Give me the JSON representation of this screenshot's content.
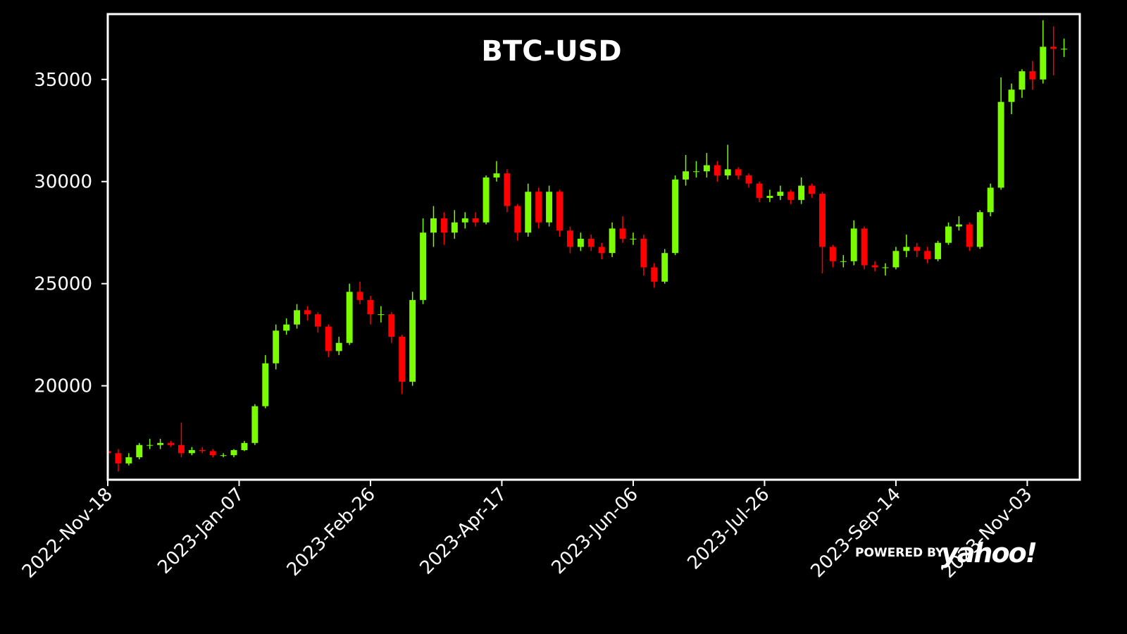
{
  "chart_data": {
    "type": "candlestick",
    "title": "BTC-USD",
    "x": [
      "2022-11-18",
      "2022-11-22",
      "2022-11-26",
      "2022-11-30",
      "2022-12-04",
      "2022-12-08",
      "2022-12-12",
      "2022-12-16",
      "2022-12-20",
      "2022-12-24",
      "2022-12-28",
      "2023-01-01",
      "2023-01-05",
      "2023-01-09",
      "2023-01-13",
      "2023-01-17",
      "2023-01-21",
      "2023-01-25",
      "2023-01-29",
      "2023-02-02",
      "2023-02-06",
      "2023-02-10",
      "2023-02-14",
      "2023-02-18",
      "2023-02-22",
      "2023-02-26",
      "2023-03-02",
      "2023-03-06",
      "2023-03-10",
      "2023-03-14",
      "2023-03-18",
      "2023-03-22",
      "2023-03-26",
      "2023-03-30",
      "2023-04-03",
      "2023-04-07",
      "2023-04-11",
      "2023-04-15",
      "2023-04-19",
      "2023-04-23",
      "2023-04-27",
      "2023-05-01",
      "2023-05-05",
      "2023-05-09",
      "2023-05-13",
      "2023-05-17",
      "2023-05-21",
      "2023-05-25",
      "2023-05-29",
      "2023-06-02",
      "2023-06-06",
      "2023-06-10",
      "2023-06-14",
      "2023-06-18",
      "2023-06-22",
      "2023-06-26",
      "2023-06-30",
      "2023-07-04",
      "2023-07-08",
      "2023-07-12",
      "2023-07-16",
      "2023-07-20",
      "2023-07-24",
      "2023-07-28",
      "2023-08-01",
      "2023-08-05",
      "2023-08-09",
      "2023-08-13",
      "2023-08-17",
      "2023-08-21",
      "2023-08-25",
      "2023-08-29",
      "2023-09-02",
      "2023-09-06",
      "2023-09-10",
      "2023-09-14",
      "2023-09-18",
      "2023-09-22",
      "2023-09-26",
      "2023-09-30",
      "2023-10-04",
      "2023-10-08",
      "2023-10-12",
      "2023-10-16",
      "2023-10-20",
      "2023-10-24",
      "2023-10-28",
      "2023-11-01",
      "2023-11-05",
      "2023-11-09",
      "2023-11-13",
      "2023-11-17"
    ],
    "open": [
      16800,
      16700,
      16200,
      16500,
      17100,
      17100,
      17200,
      17100,
      16700,
      16850,
      16800,
      16600,
      16600,
      16850,
      17200,
      19000,
      21100,
      22700,
      23000,
      23700,
      23500,
      22900,
      21700,
      22100,
      24600,
      24200,
      23500,
      23500,
      22400,
      20200,
      24200,
      27500,
      28200,
      27500,
      28000,
      28200,
      28000,
      30200,
      30400,
      28800,
      27500,
      29500,
      28000,
      29500,
      27600,
      26800,
      27200,
      26800,
      26500,
      27700,
      27200,
      27200,
      25800,
      25100,
      26500,
      30100,
      30500,
      30500,
      30800,
      30300,
      30600,
      30300,
      29900,
      29200,
      29300,
      29500,
      29100,
      29800,
      29400,
      26800,
      26100,
      26100,
      27700,
      25900,
      25800,
      25800,
      26600,
      26800,
      26600,
      26200,
      27000,
      27800,
      27900,
      26800,
      28500,
      29700,
      33900,
      34500,
      35400,
      35000,
      36600,
      36500
    ],
    "high": [
      17100,
      16900,
      16700,
      17200,
      17400,
      17400,
      17300,
      18200,
      17000,
      17000,
      16900,
      16700,
      16900,
      17300,
      19100,
      21500,
      23000,
      23300,
      24000,
      23900,
      23600,
      23000,
      22400,
      25000,
      25100,
      24400,
      23900,
      23600,
      22500,
      24600,
      28200,
      28800,
      28500,
      28600,
      28500,
      28500,
      30300,
      31000,
      30600,
      28900,
      29900,
      29700,
      29800,
      29600,
      27800,
      27500,
      27400,
      27000,
      28000,
      28300,
      27500,
      27400,
      26000,
      26700,
      30300,
      31300,
      31000,
      31400,
      31000,
      31800,
      30700,
      30400,
      30000,
      29600,
      29800,
      29600,
      30200,
      29900,
      29500,
      26900,
      26400,
      28100,
      27800,
      26100,
      26000,
      26800,
      27400,
      27000,
      26800,
      27100,
      28000,
      28300,
      28000,
      28600,
      29900,
      35100,
      34800,
      35500,
      35900,
      37900,
      37600,
      37000
    ],
    "low": [
      16400,
      15800,
      16100,
      16400,
      16900,
      16900,
      17000,
      16500,
      16600,
      16700,
      16500,
      16500,
      16500,
      16800,
      17100,
      18900,
      20800,
      22500,
      22800,
      23200,
      22600,
      21400,
      21500,
      22000,
      24000,
      23000,
      23100,
      22100,
      19600,
      20000,
      24000,
      26800,
      26900,
      27200,
      27700,
      27800,
      27900,
      30000,
      28500,
      27100,
      27300,
      27700,
      27800,
      27300,
      26500,
      26600,
      26600,
      26200,
      26300,
      27000,
      26900,
      25400,
      24800,
      25000,
      26400,
      29800,
      30200,
      30200,
      30000,
      30100,
      30100,
      29700,
      29000,
      29000,
      29100,
      28900,
      28900,
      29200,
      25500,
      25800,
      25800,
      25900,
      25700,
      25600,
      25400,
      25700,
      26300,
      26300,
      26000,
      26100,
      26900,
      27600,
      26600,
      26700,
      28300,
      29600,
      33300,
      34100,
      34500,
      34800,
      35200,
      36100
    ],
    "close": [
      16700,
      16200,
      16500,
      17100,
      17100,
      17200,
      17100,
      16700,
      16850,
      16800,
      16600,
      16600,
      16850,
      17200,
      19000,
      21100,
      22700,
      23000,
      23700,
      23500,
      22900,
      21700,
      22100,
      24600,
      24200,
      23500,
      23500,
      22400,
      20200,
      24200,
      27500,
      28200,
      27500,
      28000,
      28200,
      28000,
      30200,
      30400,
      28800,
      27500,
      29500,
      28000,
      29500,
      27600,
      26800,
      27200,
      26800,
      26500,
      27700,
      27200,
      27200,
      25800,
      25100,
      26500,
      30100,
      30500,
      30500,
      30800,
      30300,
      30600,
      30300,
      29900,
      29200,
      29300,
      29500,
      29100,
      29800,
      29400,
      26800,
      26100,
      26100,
      27700,
      25900,
      25800,
      25800,
      26600,
      26800,
      26600,
      26200,
      27000,
      27800,
      27900,
      26800,
      28500,
      29700,
      33900,
      34500,
      35400,
      35000,
      36600,
      36500,
      36500
    ],
    "up_color": "#7cfc00",
    "down_color": "#ff0000",
    "xlim": [
      "2022-11-18",
      "2023-11-23"
    ],
    "xticks": [
      {
        "value": "2022-11-18",
        "label": "2022-Nov-18"
      },
      {
        "value": "2023-01-07",
        "label": "2023-Jan-07"
      },
      {
        "value": "2023-02-26",
        "label": "2023-Feb-26"
      },
      {
        "value": "2023-04-17",
        "label": "2023-Apr-17"
      },
      {
        "value": "2023-06-06",
        "label": "2023-Jun-06"
      },
      {
        "value": "2023-07-26",
        "label": "2023-Jul-26"
      },
      {
        "value": "2023-09-14",
        "label": "2023-Sep-14"
      },
      {
        "value": "2023-11-03",
        "label": "2023-Nov-03"
      }
    ],
    "ylim": [
      15400,
      38200
    ],
    "yticks": [
      20000,
      25000,
      30000,
      35000
    ],
    "grid": false,
    "watermark": {
      "prefix": "POWERED BY",
      "brand": "yahoo!"
    }
  }
}
